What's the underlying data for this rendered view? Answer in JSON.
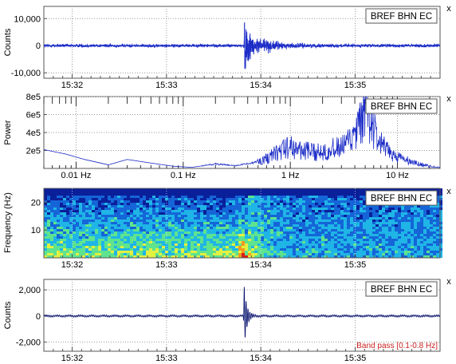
{
  "panels": [
    {
      "id": "waveform",
      "station_label": "BREF BHN EC",
      "close_label": "x",
      "ylabel": "Counts",
      "chart_data": {
        "type": "line",
        "ylabel": "Counts",
        "ylim": [
          -12000,
          14500
        ],
        "yticks": [
          {
            "v": 10000,
            "label": "10,000"
          },
          {
            "v": 0,
            "label": "0"
          },
          {
            "v": -10000,
            "label": "-10,000"
          }
        ],
        "xlim_minutes": [
          31.7,
          35.9
        ],
        "xticks": [
          {
            "v": 32,
            "label": "15:32"
          },
          {
            "v": 33,
            "label": "15:33"
          },
          {
            "v": 34,
            "label": "15:34"
          },
          {
            "v": 35,
            "label": "15:35"
          }
        ],
        "series_color": "#1d2dc8",
        "events": [
          {
            "t": 33.825,
            "amp": 14000,
            "duration": 0.2
          },
          {
            "t": 33.95,
            "amp": 3500,
            "duration": 0.6
          }
        ],
        "noise_amp": 700
      }
    },
    {
      "id": "spectrum",
      "station_label": "BREF BHN EC",
      "close_label": "x",
      "ylabel": "Power",
      "chart_data": {
        "type": "line",
        "xscale": "log",
        "ylabel": "Power",
        "ylim": [
          0,
          800000
        ],
        "yticks": [
          {
            "v": 200000,
            "label": "2e5"
          },
          {
            "v": 400000,
            "label": "4e5"
          },
          {
            "v": 600000,
            "label": "6e5"
          },
          {
            "v": 800000,
            "label": "8e5"
          }
        ],
        "xlim_hz": [
          0.005,
          25
        ],
        "xticks": [
          {
            "v": 0.01,
            "label": "0.01 Hz"
          },
          {
            "v": 0.1,
            "label": "0.1 Hz"
          },
          {
            "v": 1,
            "label": "1 Hz"
          },
          {
            "v": 10,
            "label": "10 Hz"
          }
        ],
        "series_color": "#1d2dc8",
        "envelope": [
          [
            0.005,
            210000
          ],
          [
            0.008,
            160000
          ],
          [
            0.012,
            100000
          ],
          [
            0.02,
            40000
          ],
          [
            0.03,
            100000
          ],
          [
            0.05,
            60000
          ],
          [
            0.08,
            25000
          ],
          [
            0.12,
            12000
          ],
          [
            0.2,
            50000
          ],
          [
            0.3,
            30000
          ],
          [
            0.45,
            60000
          ],
          [
            0.6,
            140000
          ],
          [
            0.8,
            240000
          ],
          [
            1.0,
            300000
          ],
          [
            1.3,
            250000
          ],
          [
            1.7,
            220000
          ],
          [
            2.2,
            260000
          ],
          [
            3.0,
            290000
          ],
          [
            3.8,
            400000
          ],
          [
            4.5,
            600000
          ],
          [
            5.0,
            830000
          ],
          [
            5.5,
            700000
          ],
          [
            6.5,
            400000
          ],
          [
            8,
            240000
          ],
          [
            10,
            160000
          ],
          [
            14,
            80000
          ],
          [
            20,
            30000
          ],
          [
            25,
            10000
          ]
        ]
      }
    },
    {
      "id": "spectrogram",
      "station_label": "BREF BHN EC",
      "close_label": "x",
      "ylabel": "Frequency (Hz)",
      "chart_data": {
        "type": "heatmap",
        "ylabel": "Frequency (Hz)",
        "ylim": [
          0,
          25
        ],
        "yticks": [
          {
            "v": 10,
            "label": "10"
          },
          {
            "v": 20,
            "label": "20"
          }
        ],
        "xlim_minutes": [
          31.7,
          35.9
        ],
        "xticks": [
          {
            "v": 32,
            "label": "15:32"
          },
          {
            "v": 33,
            "label": "15:33"
          },
          {
            "v": 34,
            "label": "15:34"
          },
          {
            "v": 35,
            "label": "15:35"
          }
        ],
        "colormap": [
          "#0a1f9a",
          "#1565d8",
          "#1fb5e6",
          "#5ee38f",
          "#e2f040",
          "#f59a1d",
          "#e01a12"
        ],
        "event_time": 33.82
      }
    },
    {
      "id": "filtered",
      "station_label": "BREF BHN EC",
      "close_label": "x",
      "ylabel": "Counts",
      "filter_label": "Band pass [0.1-0.8 Hz]",
      "chart_data": {
        "type": "line",
        "ylabel": "Counts",
        "ylim": [
          -2700,
          2800
        ],
        "yticks": [
          {
            "v": 2000,
            "label": "2,000"
          },
          {
            "v": 0,
            "label": "0"
          },
          {
            "v": -2000,
            "label": "-2,000"
          }
        ],
        "xlim_minutes": [
          31.7,
          35.9
        ],
        "xticks": [
          {
            "v": 32,
            "label": "15:32"
          },
          {
            "v": 33,
            "label": "15:33"
          },
          {
            "v": 34,
            "label": "15:34"
          },
          {
            "v": 35,
            "label": "15:35"
          }
        ],
        "series_color": "#0a1470",
        "events": [
          {
            "t": 33.82,
            "amp": 2700,
            "duration": 0.08
          }
        ],
        "noise_amp": 60
      }
    }
  ]
}
